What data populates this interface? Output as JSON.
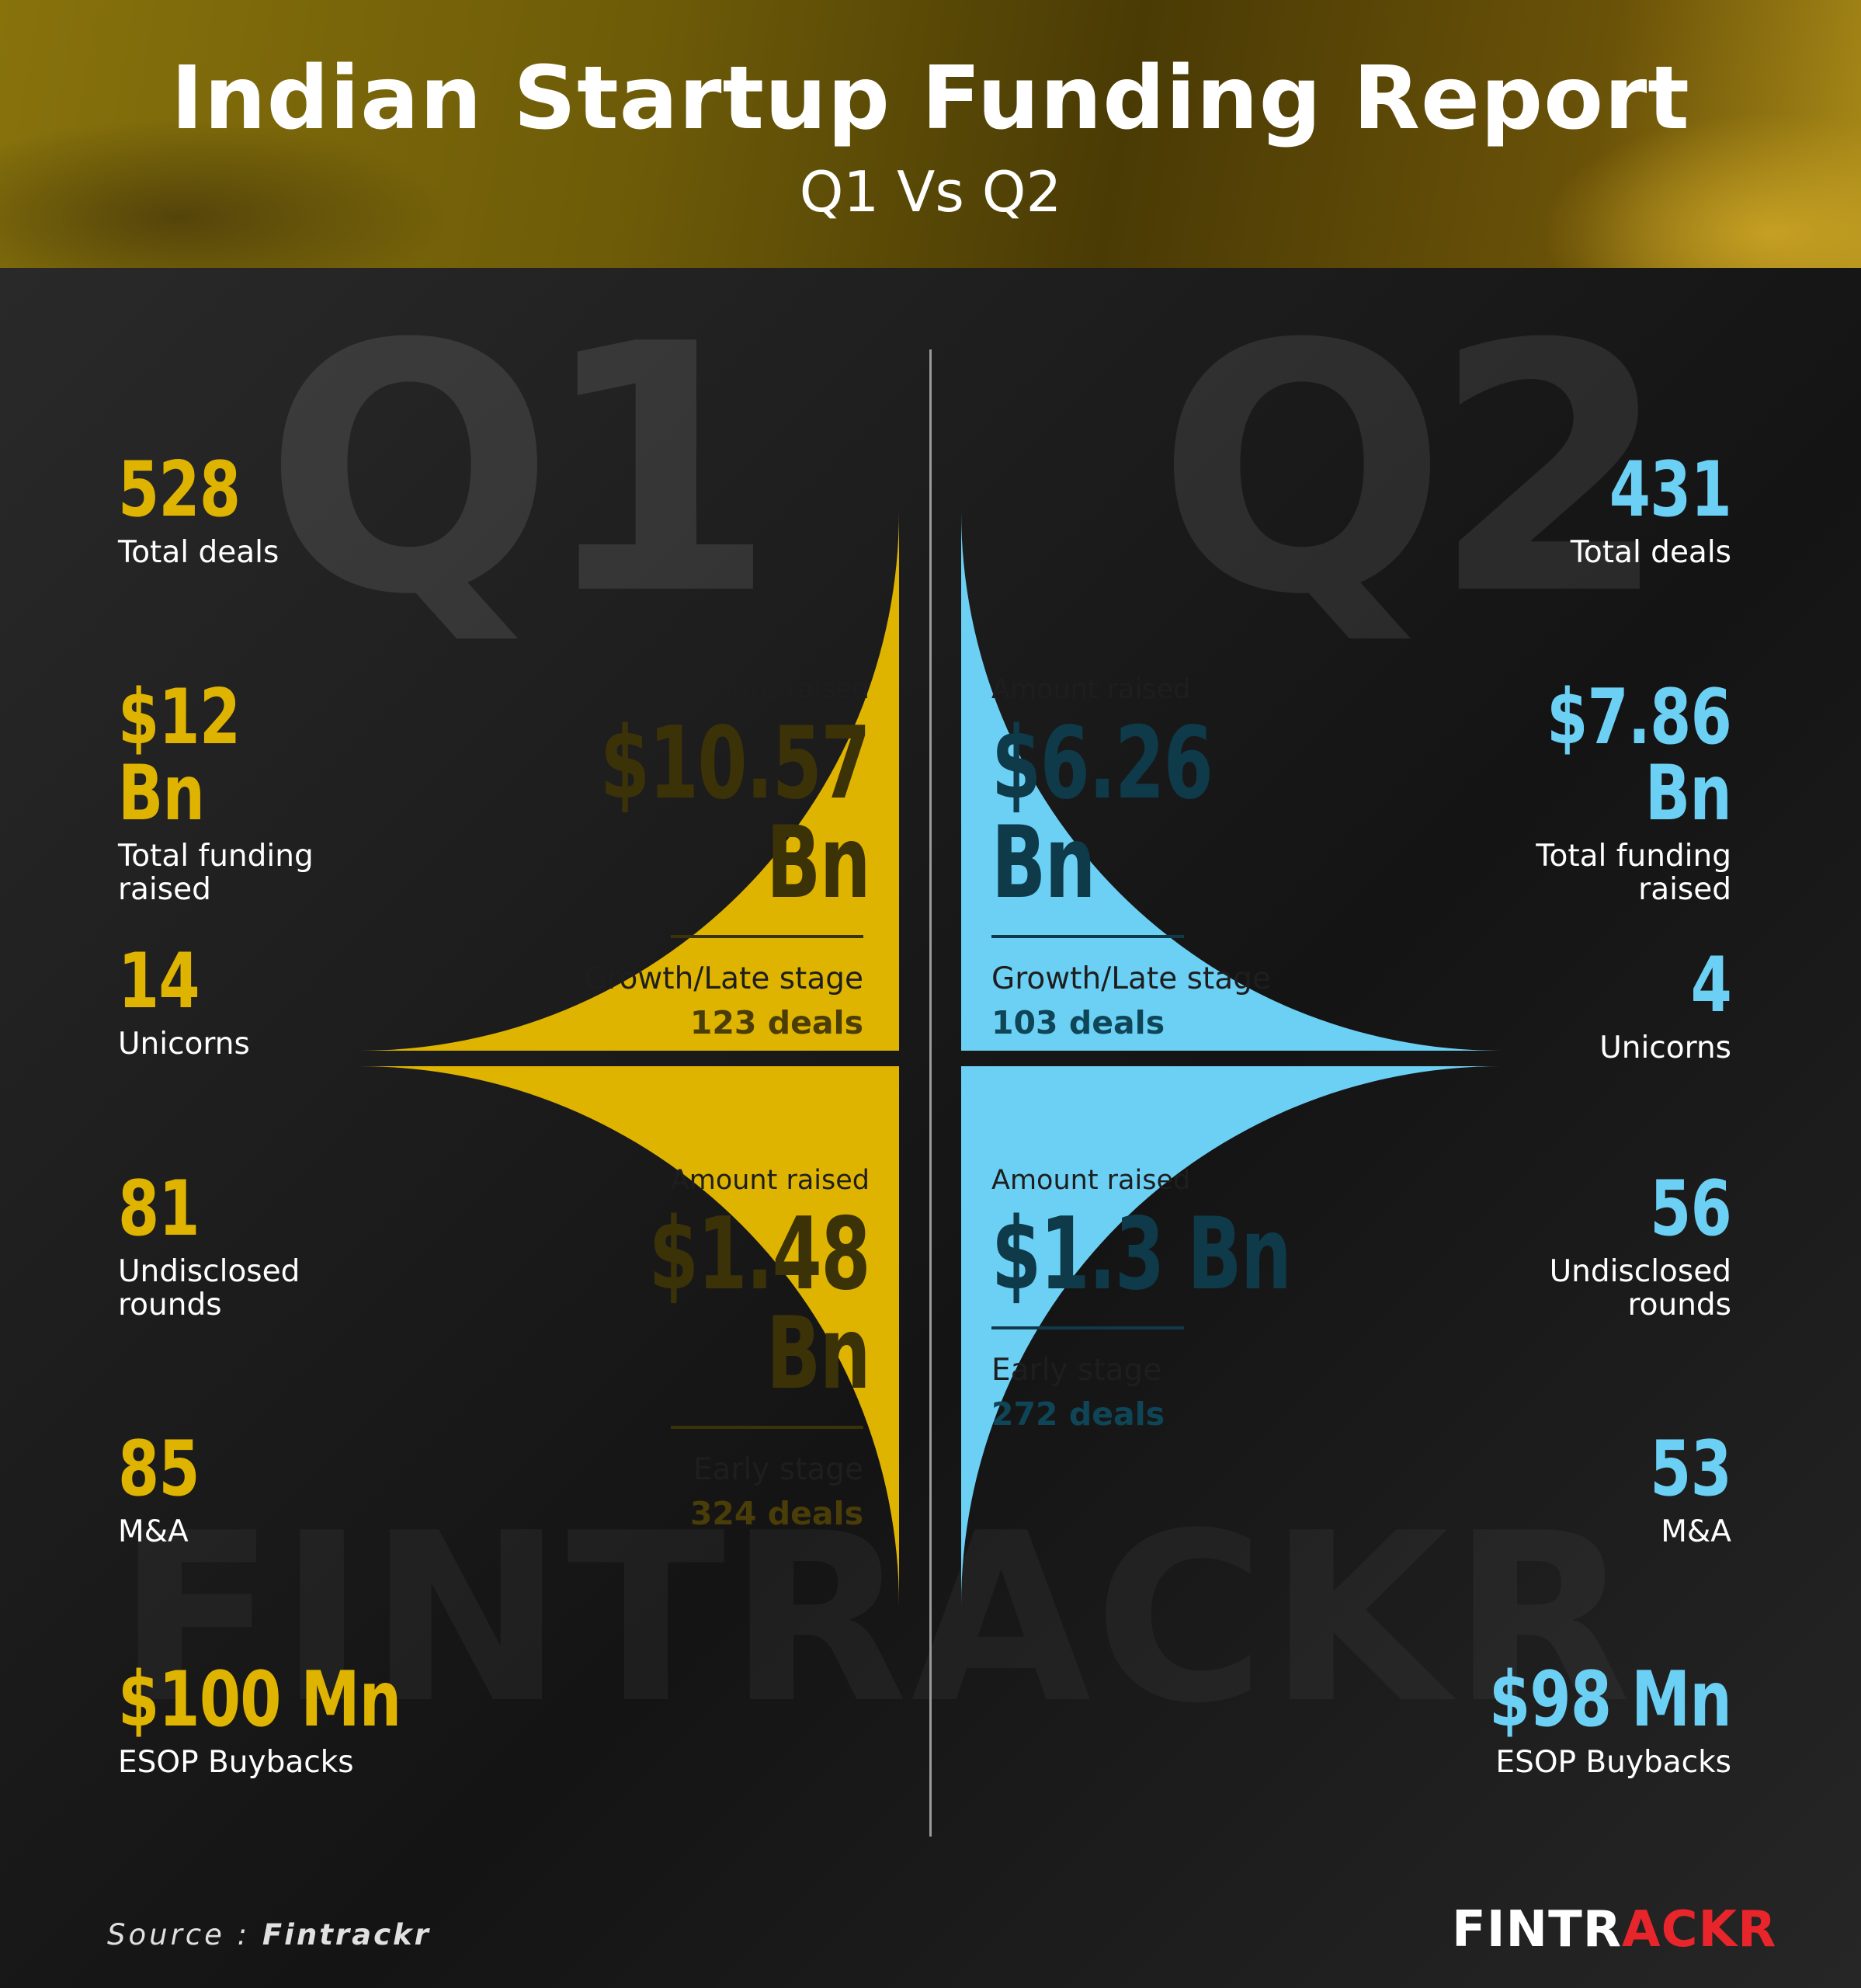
{
  "header": {
    "title": "Indian Startup Funding Report",
    "subtitle": "Q1 Vs Q2"
  },
  "watermarks": {
    "q1": "Q1",
    "q2": "Q2",
    "brand": "FINTRACKR"
  },
  "chart_data": {
    "type": "pie",
    "description_series": [
      {
        "name": "Q1",
        "color": "#dfb400",
        "segments": [
          {
            "stage": "Growth/Late stage",
            "amount_label": "Amount raised",
            "amount": "$10.57 Bn",
            "amount_bn": 10.57,
            "deals": "123 deals",
            "deal_count": 123
          },
          {
            "stage": "Early stage",
            "amount_label": "Amount raised",
            "amount": "$1.48 Bn",
            "amount_bn": 1.48,
            "deals": "324 deals",
            "deal_count": 324
          }
        ]
      },
      {
        "name": "Q2",
        "color": "#6cd0f5",
        "segments": [
          {
            "stage": "Growth/Late stage",
            "amount_label": "Amount raised",
            "amount": "$6.26 Bn",
            "amount_bn": 6.26,
            "deals": "103 deals",
            "deal_count": 103
          },
          {
            "stage": "Early stage",
            "amount_label": "Amount raised",
            "amount": "$1.3 Bn",
            "amount_bn": 1.3,
            "deals": "272 deals",
            "deal_count": 272
          }
        ]
      }
    ]
  },
  "stats": {
    "q1": [
      {
        "value": "528",
        "label": "Total deals"
      },
      {
        "value": "$12 Bn",
        "label": "Total funding raised"
      },
      {
        "value": "14",
        "label": "Unicorns"
      },
      {
        "value": "81",
        "label": "Undisclosed rounds"
      },
      {
        "value": "85",
        "label": "M&A"
      },
      {
        "value": "$100 Mn",
        "label": "ESOP Buybacks"
      }
    ],
    "q2": [
      {
        "value": "431",
        "label": "Total deals"
      },
      {
        "value": "$7.86 Bn",
        "label": "Total funding raised"
      },
      {
        "value": "4",
        "label": "Unicorns"
      },
      {
        "value": "56",
        "label": "Undisclosed rounds"
      },
      {
        "value": "53",
        "label": "M&A"
      },
      {
        "value": "$98 Mn",
        "label": "ESOP Buybacks"
      }
    ]
  },
  "footer": {
    "source_prefix": "Source : ",
    "source_name": "Fintrackr",
    "logo_part1": "FINTR",
    "logo_part2": "ACKR"
  }
}
